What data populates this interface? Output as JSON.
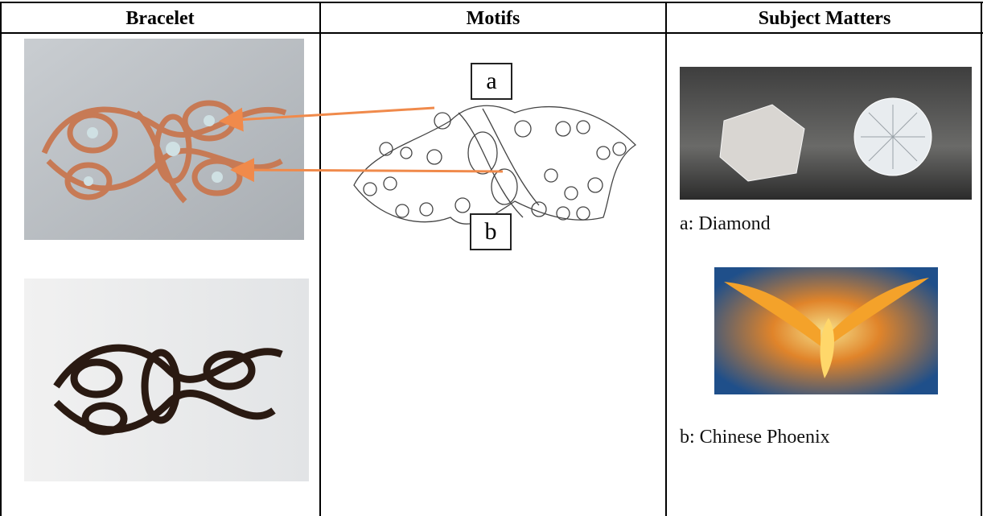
{
  "table": {
    "headers": [
      "Bracelet",
      "Motifs",
      "Subject Matters"
    ],
    "motif_labels": [
      "a",
      "b"
    ],
    "subjects": [
      "a: Diamond",
      "b: Chinese Phoenix"
    ]
  }
}
